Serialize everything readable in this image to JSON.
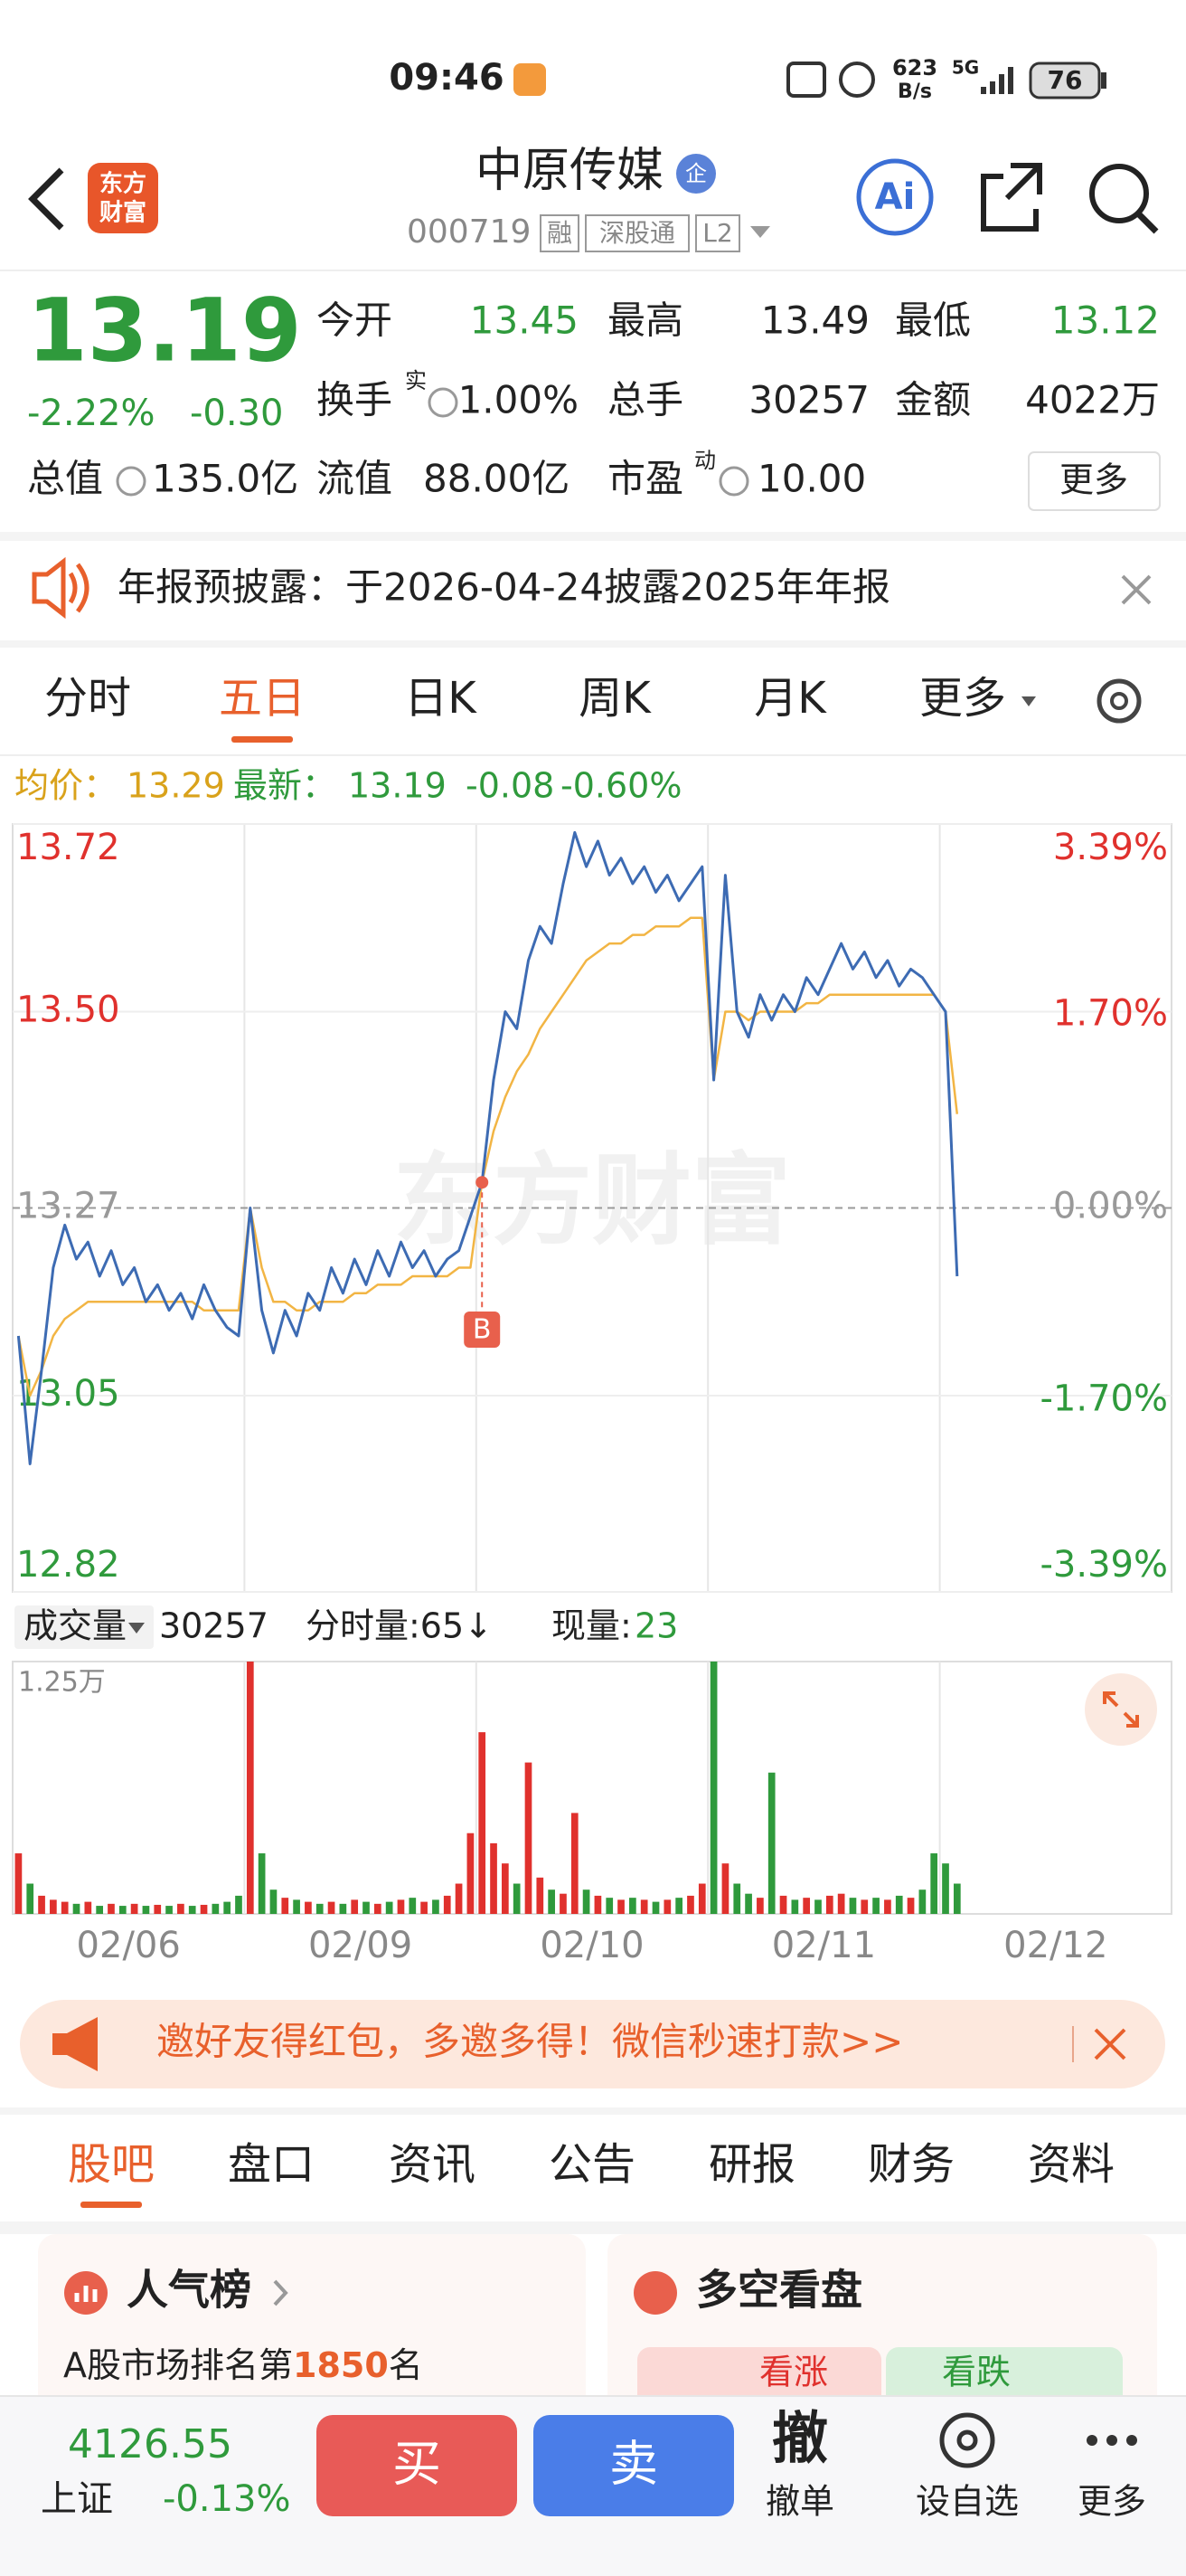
{
  "status_bar": {
    "time": "09:46",
    "speed": "623",
    "speed_unit": "B/s",
    "network": "5G",
    "battery": "76"
  },
  "header": {
    "logo": [
      "东方",
      "财富"
    ],
    "title": "中原传媒",
    "badge": "企",
    "code": "000719",
    "tags": [
      "融",
      "深股通",
      "L2"
    ],
    "ai": "Ai"
  },
  "quote": {
    "price": "13.19",
    "change_pct": "-2.22%",
    "change": "-0.30",
    "rows": [
      [
        {
          "label": "今开",
          "value": "13.45"
        },
        {
          "label": "最高",
          "value": "13.49"
        },
        {
          "label": "最低",
          "value": "13.12"
        }
      ],
      [
        {
          "label": "换手",
          "sup": "实",
          "value": "1.00%"
        },
        {
          "label": "总手",
          "value": "30257"
        },
        {
          "label": "金额",
          "value": "4022万"
        }
      ],
      [
        {
          "label": "总值",
          "value": "135.0亿"
        },
        {
          "label": "流值",
          "value": "88.00亿"
        },
        {
          "label": "市盈",
          "sup": "动",
          "value": "10.00"
        }
      ]
    ],
    "more": "更多"
  },
  "notice": {
    "text": "年报预披露：于2026-04-24披露2025年年报"
  },
  "period_tabs": {
    "items": [
      "分时",
      "五日",
      "日K",
      "周K",
      "月K",
      "更多"
    ],
    "active": 1
  },
  "legend": {
    "avg_label": "均价：",
    "avg": "13.29",
    "last_label": "最新：",
    "last": "13.19",
    "change": "-0.08",
    "change_pct": "-0.60%"
  },
  "volume_header": {
    "label": "成交量",
    "total": "30257",
    "tick_volume": "分时量:65↓",
    "current_label": "现量:",
    "current": "23"
  },
  "watermark": "东方财富",
  "chart_data": [
    {
      "type": "line",
      "day_labels": [
        "02/06",
        "02/09",
        "02/10",
        "02/11",
        "02/12"
      ],
      "ylim": [
        12.82,
        13.72
      ],
      "yticks": [
        13.72,
        {
          "value": 13.5,
          "label": "13.50"
        },
        13.27,
        13.05,
        12.82
      ],
      "y2lim": [
        -3.39,
        3.39
      ],
      "y2ticks": [
        {
          "value": 3.39,
          "label": "3.39%"
        },
        {
          "value": 1.7,
          "label": "1.70%"
        },
        {
          "value": 0,
          "label": "0.00%"
        },
        {
          "value": -1.7,
          "label": "-1.70%"
        },
        {
          "value": -3.39,
          "label": "-3.39%"
        }
      ],
      "grid": true,
      "up_color": "#e0312d",
      "down_color": "#2f9a3c",
      "series": [
        {
          "color": "#3d6bb3",
          "values": [
            13.12,
            12.97,
            13.08,
            13.2,
            13.25,
            13.21,
            13.23,
            13.19,
            13.22,
            13.18,
            13.2,
            13.16,
            13.18,
            13.15,
            13.17,
            13.14,
            13.18,
            13.15,
            13.13,
            13.12,
            13.27,
            13.15,
            13.1,
            13.15,
            13.12,
            13.17,
            13.15,
            13.2,
            13.17,
            13.21,
            13.18,
            13.22,
            13.19,
            13.23,
            13.2,
            13.22,
            13.19,
            13.21,
            13.22,
            13.26,
            13.3,
            13.42,
            13.5,
            13.48,
            13.56,
            13.6,
            13.58,
            13.65,
            13.71,
            13.67,
            13.7,
            13.66,
            13.68,
            13.65,
            13.67,
            13.64,
            13.66,
            13.63,
            13.65,
            13.67,
            13.42,
            13.66,
            13.5,
            13.47,
            13.52,
            13.49,
            13.52,
            13.5,
            13.54,
            13.52,
            13.55,
            13.58,
            13.55,
            13.57,
            13.54,
            13.56,
            13.53,
            13.55,
            13.54,
            13.52,
            13.5,
            13.19,
            null,
            null,
            null,
            null,
            null,
            null,
            null,
            null,
            null,
            null,
            null,
            null,
            null,
            null,
            null,
            null,
            null,
            null
          ]
        },
        {
          "color": "#f2b544",
          "values": [
            13.12,
            13.05,
            13.08,
            13.12,
            13.14,
            13.15,
            13.16,
            13.16,
            13.16,
            13.16,
            13.16,
            13.16,
            13.16,
            13.16,
            13.16,
            13.16,
            13.15,
            13.15,
            13.15,
            13.15,
            13.27,
            13.2,
            13.16,
            13.16,
            13.15,
            13.15,
            13.16,
            13.16,
            13.16,
            13.17,
            13.17,
            13.18,
            13.18,
            13.18,
            13.19,
            13.19,
            13.19,
            13.19,
            13.2,
            13.2,
            13.3,
            13.36,
            13.4,
            13.43,
            13.45,
            13.48,
            13.5,
            13.52,
            13.54,
            13.56,
            13.57,
            13.58,
            13.58,
            13.59,
            13.59,
            13.6,
            13.6,
            13.6,
            13.61,
            13.61,
            13.42,
            13.5,
            13.5,
            13.49,
            13.5,
            13.5,
            13.5,
            13.5,
            13.51,
            13.51,
            13.52,
            13.52,
            13.52,
            13.52,
            13.52,
            13.52,
            13.52,
            13.52,
            13.52,
            13.52,
            13.5,
            13.38,
            null,
            null,
            null,
            null,
            null,
            null,
            null,
            null,
            null,
            null,
            null,
            null,
            null,
            null,
            null,
            null,
            null,
            null
          ]
        }
      ],
      "annotation": {
        "text": "B",
        "index": 40,
        "color": "#e8604c"
      }
    },
    {
      "type": "bar",
      "ylim": [
        0,
        12500
      ],
      "yticks": [
        {
          "value": 12500,
          "label": "1.25万"
        }
      ],
      "values": [
        3000,
        1500,
        900,
        700,
        600,
        500,
        600,
        400,
        500,
        400,
        500,
        400,
        450,
        400,
        500,
        400,
        450,
        500,
        600,
        900,
        12500,
        3000,
        1200,
        800,
        700,
        600,
        500,
        600,
        500,
        700,
        600,
        500,
        600,
        700,
        800,
        600,
        700,
        900,
        1500,
        4000,
        9000,
        3500,
        2500,
        1500,
        7500,
        1800,
        1200,
        1000,
        5000,
        1200,
        900,
        800,
        700,
        800,
        700,
        600,
        700,
        800,
        900,
        1500,
        12500,
        2500,
        1500,
        1000,
        800,
        7000,
        900,
        700,
        800,
        700,
        900,
        1000,
        800,
        700,
        800,
        700,
        900,
        800,
        1200,
        3000,
        2500,
        1500,
        null,
        null,
        null,
        null,
        null,
        null,
        null,
        null,
        null,
        null,
        null,
        null,
        null,
        null,
        null,
        null,
        null,
        null
      ]
    }
  ],
  "banner": {
    "text": "邀好友得红包，多邀多得！微信秒速打款>>"
  },
  "info_tabs": {
    "items": [
      "股吧",
      "盘口",
      "资讯",
      "公告",
      "研报",
      "财务",
      "资料"
    ],
    "active": 0
  },
  "cards": {
    "popularity": {
      "title": "人气榜",
      "rank_prefix": "A股市场排名第",
      "rank": "1850",
      "rank_suffix": "名"
    },
    "sentiment": {
      "title": "多空看盘",
      "bull": "看涨",
      "bear": "看跌"
    }
  },
  "bottom_bar": {
    "index_value": "4126.55",
    "index_name": "上证",
    "index_change": "-0.13%",
    "buy": "买",
    "sell": "卖",
    "cancel_icon": "撤",
    "cancel": "撤单",
    "watch": "设自选",
    "more": "更多"
  }
}
